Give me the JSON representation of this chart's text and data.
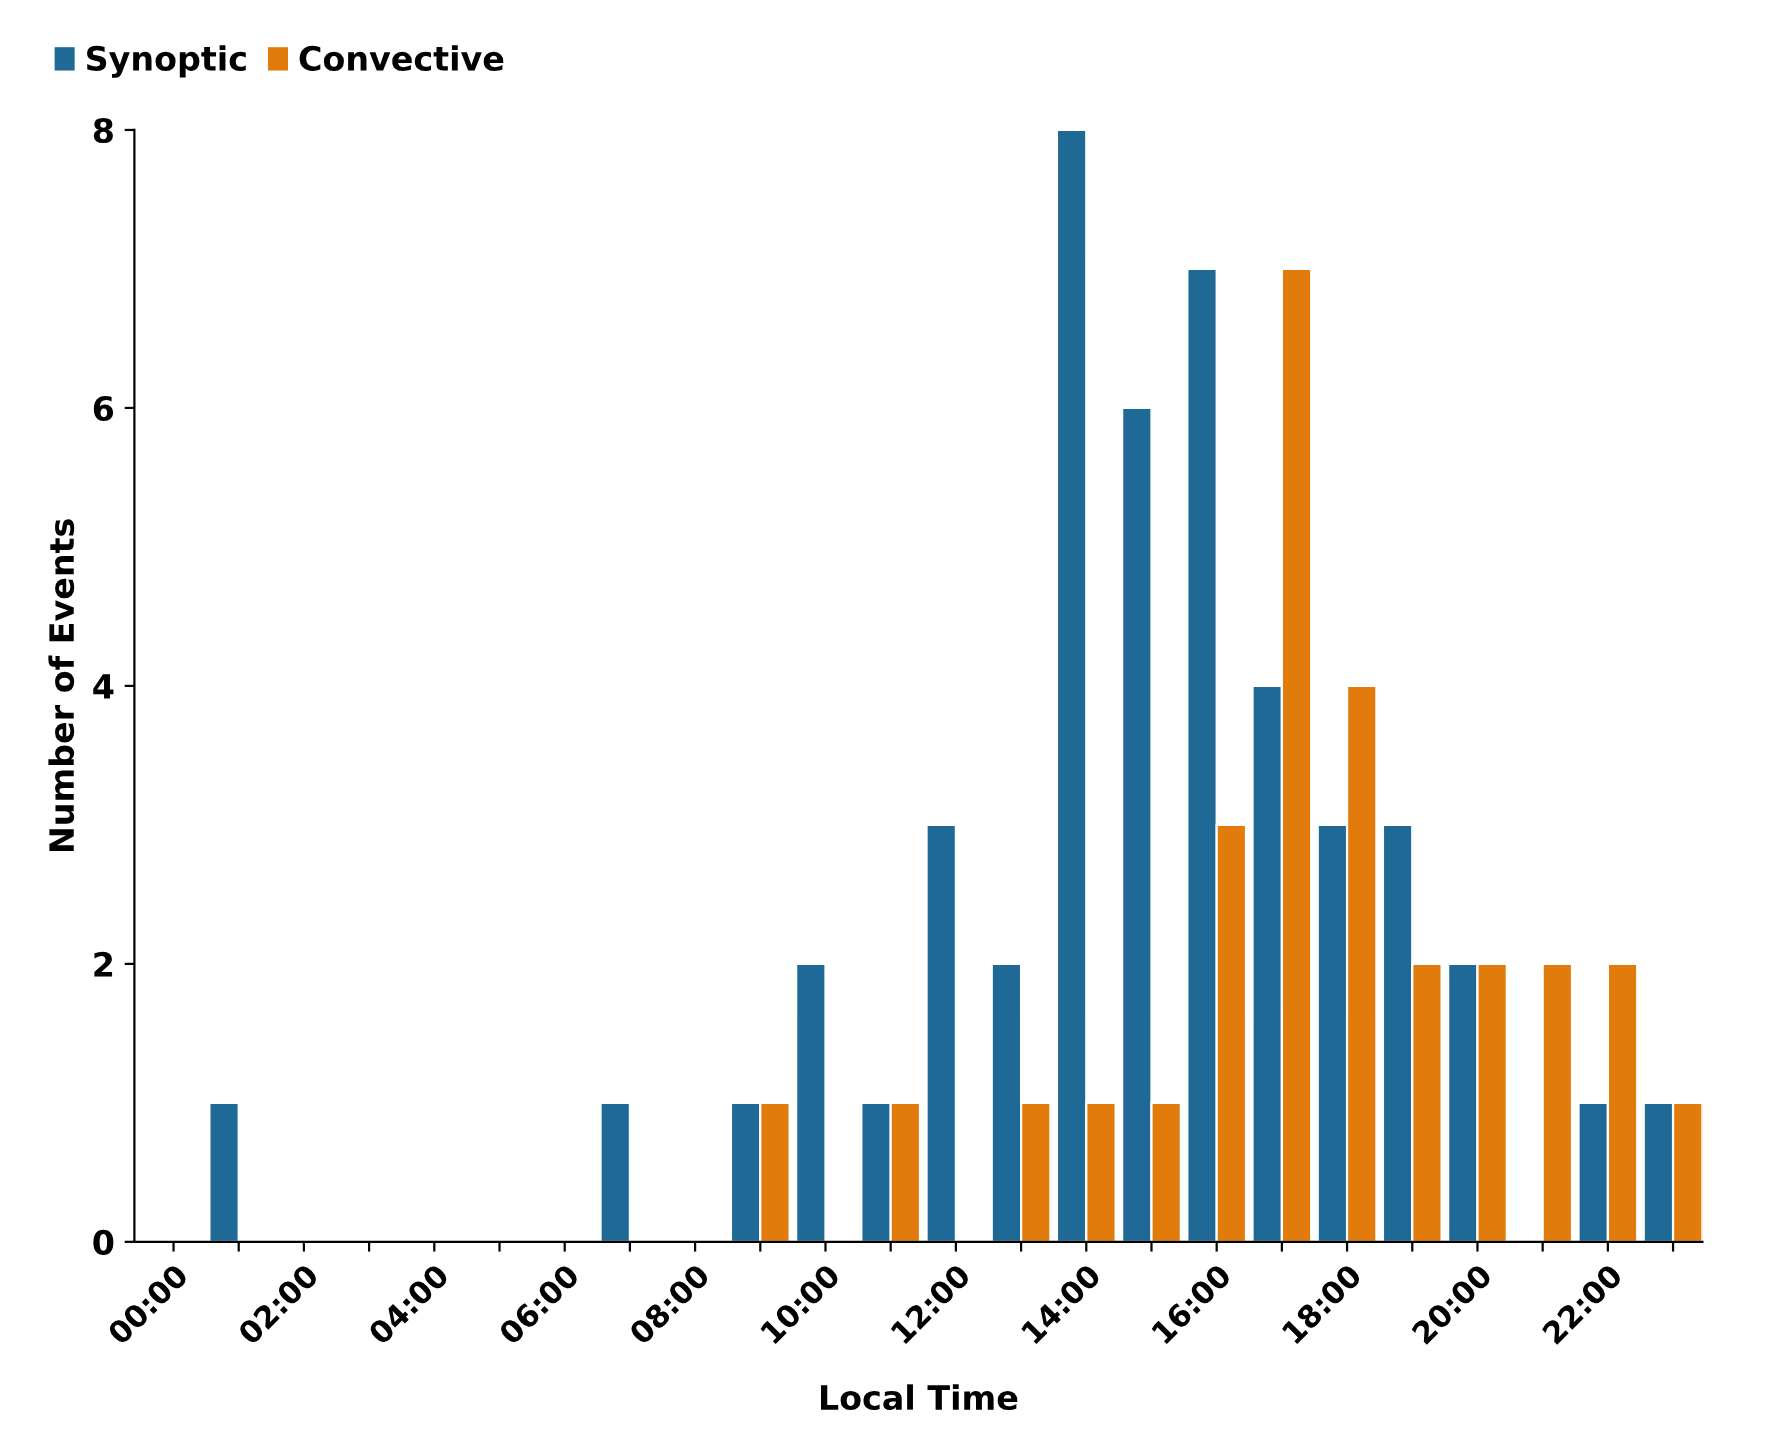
{
  "chart_data": {
    "type": "bar",
    "xlabel": "Local Time",
    "ylabel": "Number of Events",
    "x": [
      1,
      7,
      9,
      10,
      11,
      12,
      13,
      14,
      15,
      16,
      17,
      18,
      19,
      20,
      21,
      22,
      23
    ],
    "series": [
      {
        "name": "Synoptic",
        "color": "#1f6996",
        "values": [
          1,
          1,
          1,
          2,
          1,
          3,
          2,
          8,
          6,
          7,
          4,
          3,
          3,
          2,
          null,
          1,
          1
        ]
      },
      {
        "name": "Convective",
        "color": "#e07b0c",
        "values": [
          null,
          null,
          1,
          null,
          1,
          null,
          1,
          1,
          1,
          3,
          7,
          4,
          2,
          2,
          2,
          2,
          1
        ]
      }
    ],
    "xlim": [
      -0.6,
      23.45
    ],
    "xticks": [
      {
        "value": 0,
        "label": "00:00"
      },
      {
        "value": 1,
        "label": null
      },
      {
        "value": 2,
        "label": "02:00"
      },
      {
        "value": 3,
        "label": null
      },
      {
        "value": 4,
        "label": "04:00"
      },
      {
        "value": 5,
        "label": null
      },
      {
        "value": 6,
        "label": "06:00"
      },
      {
        "value": 7,
        "label": null
      },
      {
        "value": 8,
        "label": "08:00"
      },
      {
        "value": 9,
        "label": null
      },
      {
        "value": 10,
        "label": "10:00"
      },
      {
        "value": 11,
        "label": null
      },
      {
        "value": 12,
        "label": "12:00"
      },
      {
        "value": 13,
        "label": null
      },
      {
        "value": 14,
        "label": "14:00"
      },
      {
        "value": 15,
        "label": null
      },
      {
        "value": 16,
        "label": "16:00"
      },
      {
        "value": 17,
        "label": null
      },
      {
        "value": 18,
        "label": "18:00"
      },
      {
        "value": 19,
        "label": null
      },
      {
        "value": 20,
        "label": "20:00"
      },
      {
        "value": 21,
        "label": null
      },
      {
        "value": 22,
        "label": "22:00"
      },
      {
        "value": 23,
        "label": null
      }
    ],
    "ylim": [
      0,
      8
    ],
    "yticks": [
      0,
      2,
      4,
      6,
      8
    ],
    "legend": "top left",
    "grid": false
  }
}
